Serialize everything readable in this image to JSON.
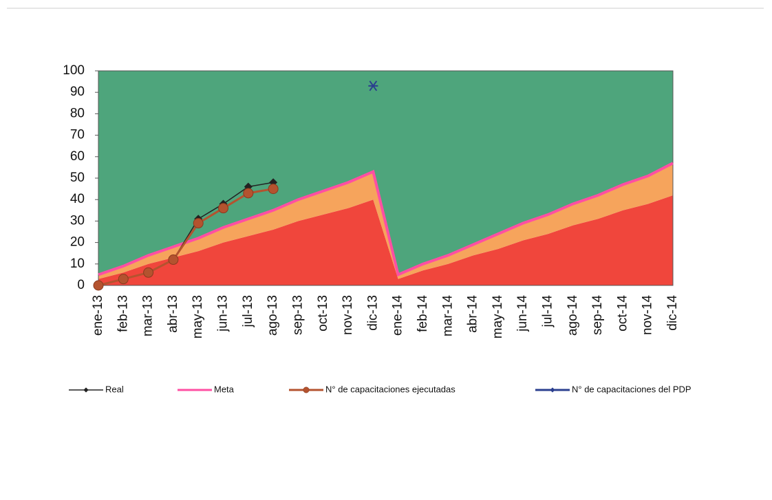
{
  "chart_data": {
    "type": "area",
    "categories": [
      "ene-13",
      "feb-13",
      "mar-13",
      "abr-13",
      "may-13",
      "jun-13",
      "jul-13",
      "ago-13",
      "sep-13",
      "oct-13",
      "nov-13",
      "dic-13",
      "ene-14",
      "feb-14",
      "mar-14",
      "abr-14",
      "may-14",
      "jun-14",
      "jul-14",
      "ago-14",
      "sep-14",
      "oct-14",
      "nov-14",
      "dic-14"
    ],
    "ylim": [
      0,
      100
    ],
    "yticks": [
      0,
      10,
      20,
      30,
      40,
      50,
      60,
      70,
      80,
      90,
      100
    ],
    "areas": [
      {
        "color": "#f0463c",
        "values": [
          3,
          6,
          10,
          13,
          16,
          20,
          23,
          26,
          30,
          33,
          36,
          40,
          3,
          7,
          10,
          14,
          17,
          21,
          24,
          28,
          31,
          35,
          38,
          42
        ]
      },
      {
        "color": "#f6a45c",
        "values": [
          2,
          3,
          4,
          5,
          6,
          7,
          8,
          9,
          10,
          11,
          12,
          13,
          2,
          3,
          4,
          5,
          7,
          8,
          9,
          10,
          11,
          12,
          13,
          15
        ]
      },
      {
        "color": "#4ea57c",
        "values": [
          95,
          91,
          86,
          82,
          78,
          73,
          69,
          65,
          60,
          56,
          52,
          47,
          95,
          90,
          86,
          81,
          76,
          71,
          67,
          62,
          58,
          53,
          49,
          43
        ]
      }
    ],
    "series": [
      {
        "name": "Meta",
        "color": "#ff4fa3",
        "marker": "none",
        "width": 4,
        "values": [
          5,
          9,
          14,
          18,
          22,
          27,
          31,
          35,
          40,
          44,
          48,
          53,
          5,
          10,
          14,
          19,
          24,
          29,
          33,
          38,
          42,
          47,
          51,
          57
        ]
      },
      {
        "name": "Real",
        "color": "#222222",
        "marker": "diamond",
        "width": 1.5,
        "values": [
          0,
          3,
          6,
          12,
          31,
          38,
          46,
          48,
          null,
          null,
          null,
          null,
          null,
          null,
          null,
          null,
          null,
          null,
          null,
          null,
          null,
          null,
          null,
          null
        ]
      },
      {
        "name": "N° de capacitaciones ejecutadas",
        "color": "#b4532f",
        "marker": "circle",
        "width": 3,
        "values": [
          0,
          3,
          6,
          12,
          29,
          36,
          43,
          45,
          null,
          null,
          null,
          null,
          null,
          null,
          null,
          null,
          null,
          null,
          null,
          null,
          null,
          null,
          null,
          null
        ]
      },
      {
        "name": "N° de capacitaciones del PDP",
        "color": "#2b3f8f",
        "marker": "star",
        "width": 3,
        "values": [
          null,
          null,
          null,
          null,
          null,
          null,
          null,
          null,
          null,
          null,
          null,
          93,
          null,
          null,
          null,
          null,
          null,
          null,
          null,
          null,
          null,
          null,
          null,
          null
        ]
      }
    ],
    "legend_order": [
      1,
      0,
      2,
      3
    ]
  }
}
